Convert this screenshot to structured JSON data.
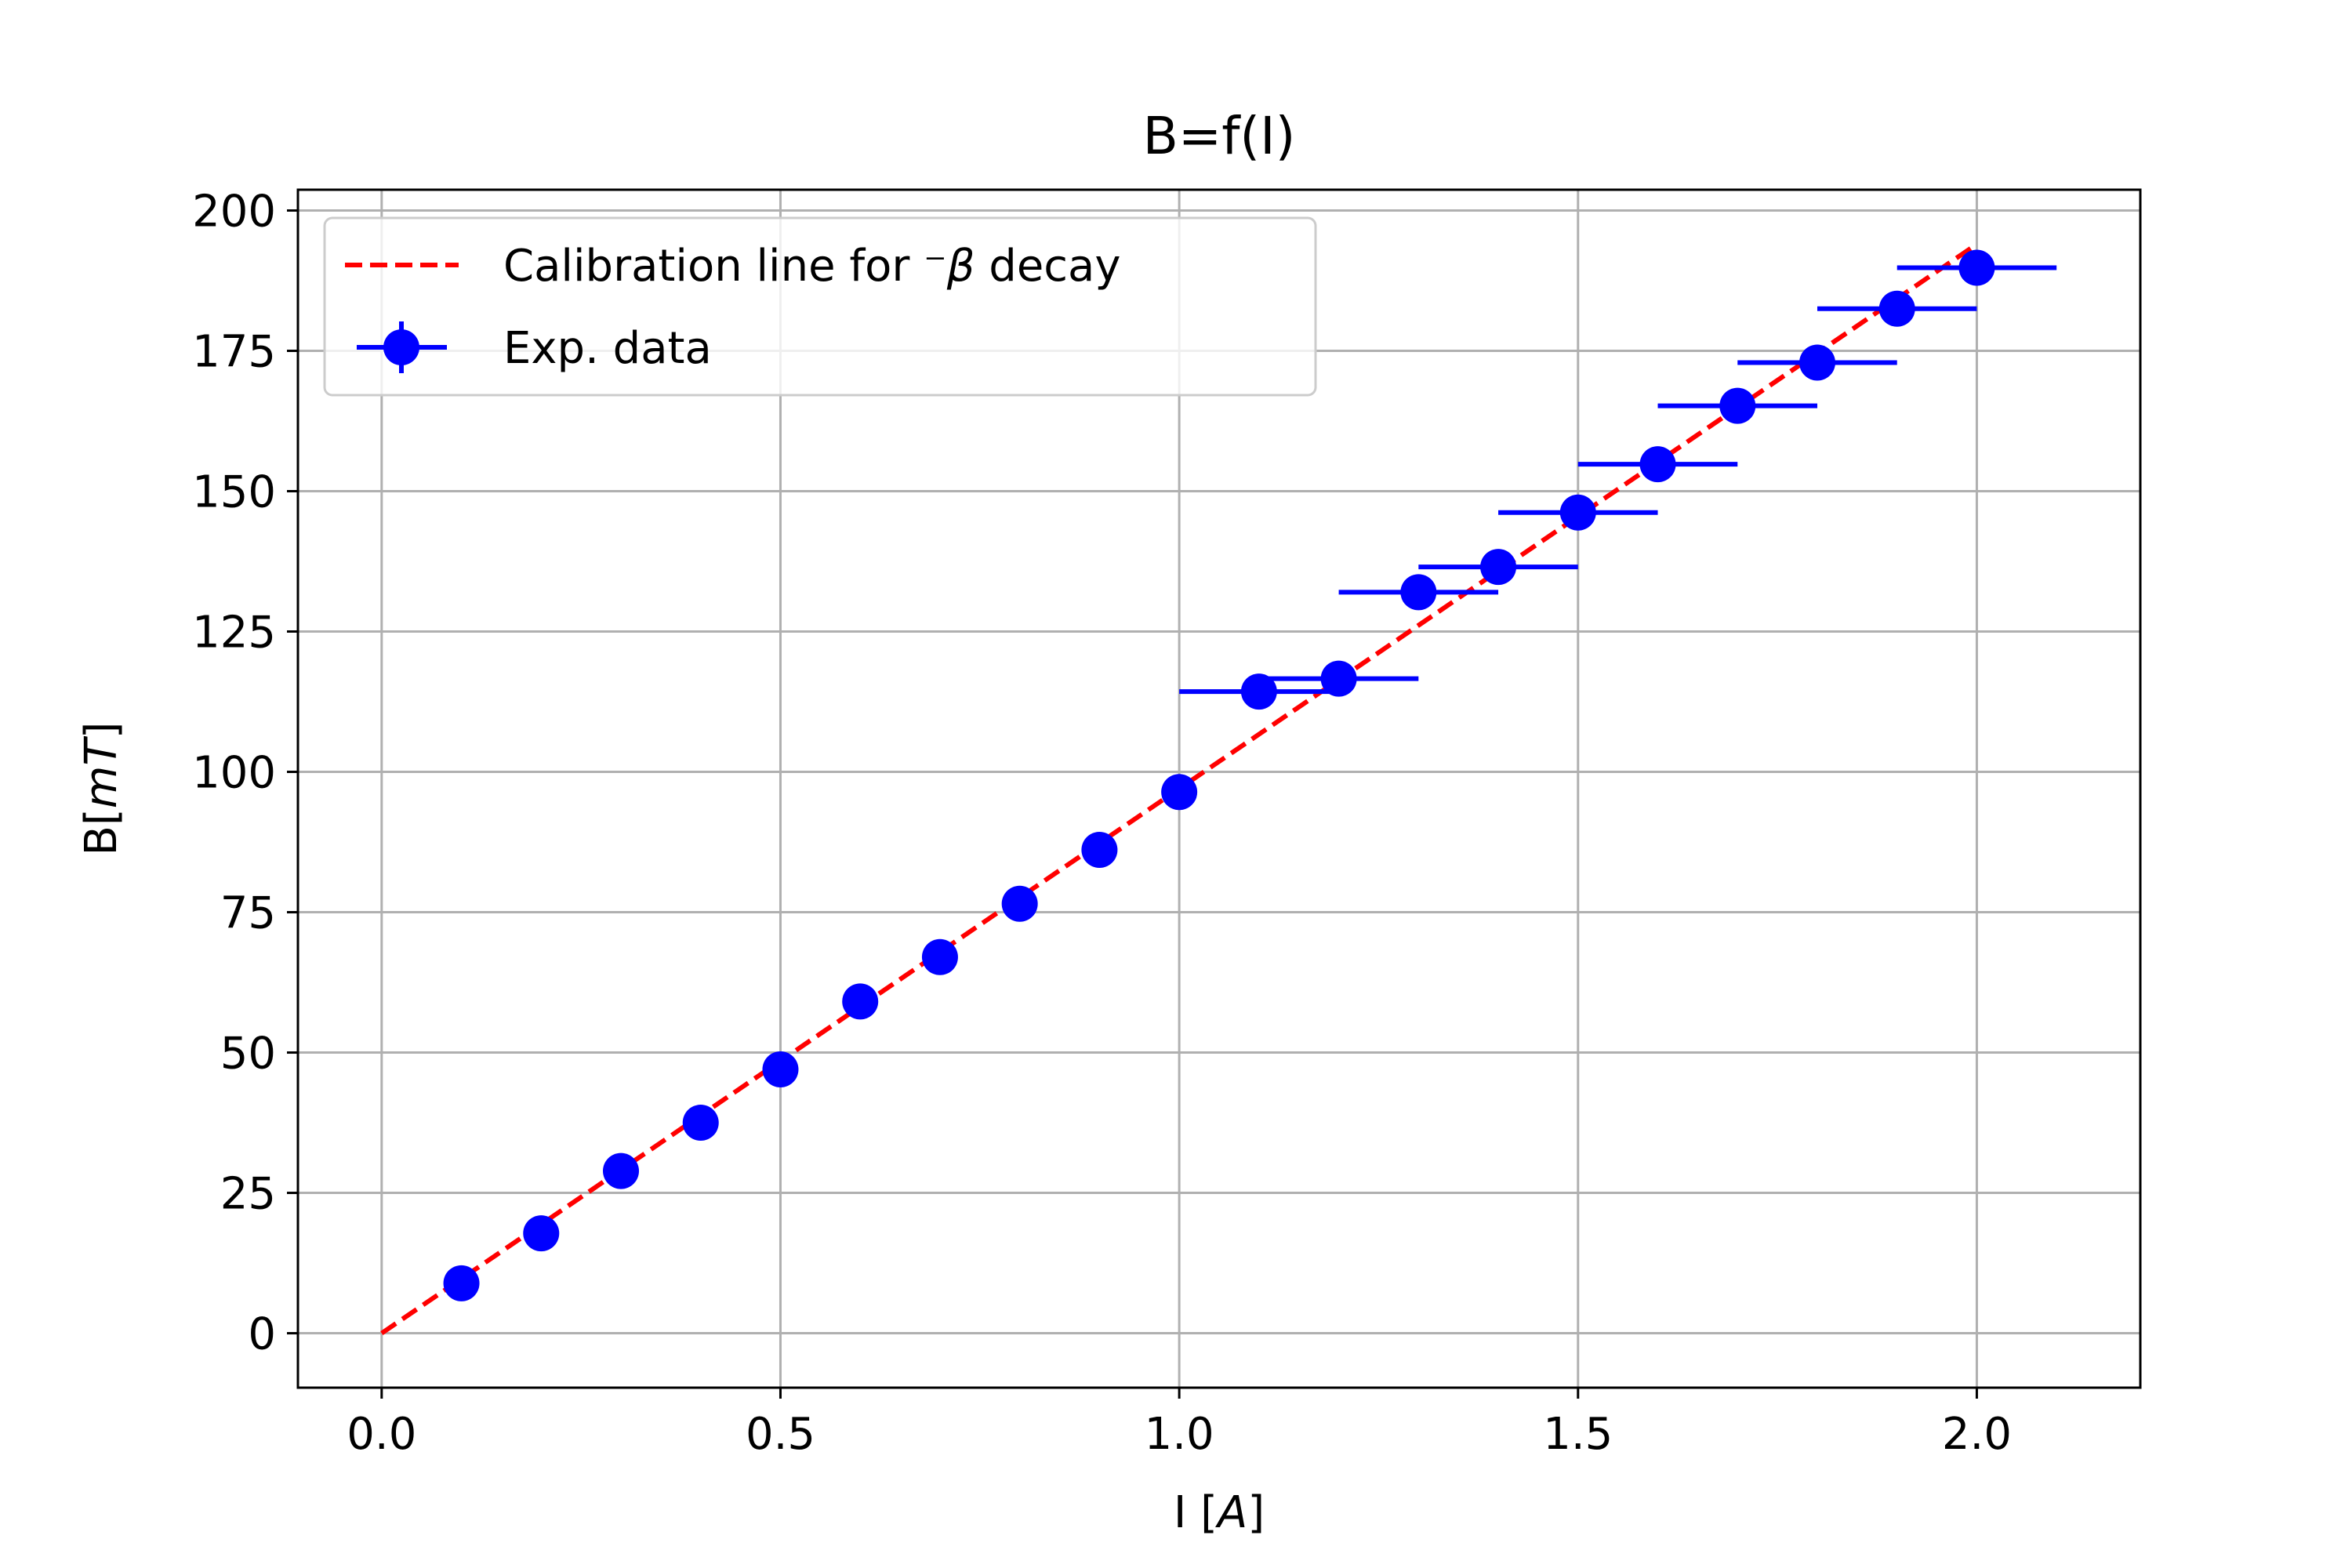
{
  "chart_data": {
    "type": "scatter",
    "title": "B=f(I)",
    "xlabel": "I [A]",
    "ylabel": "B[mT]",
    "xlim": [
      -0.105,
      2.205
    ],
    "ylim": [
      -9.7,
      203.7
    ],
    "grid": true,
    "legend_position": "upper-left",
    "xticks": [
      0.0,
      0.5,
      1.0,
      1.5,
      2.0
    ],
    "xtick_labels": [
      "0.0",
      "0.5",
      "1.0",
      "1.5",
      "2.0"
    ],
    "yticks": [
      0,
      25,
      50,
      75,
      100,
      125,
      150,
      175,
      200
    ],
    "ytick_labels": [
      "0",
      "25",
      "50",
      "75",
      "100",
      "125",
      "150",
      "175",
      "200"
    ],
    "series": [
      {
        "name": "Calibration line for ⁻β decay",
        "kind": "line",
        "style": "dashed",
        "color": "#ff0000",
        "x": [
          0.0,
          2.0
        ],
        "y": [
          0.0,
          194.0
        ]
      },
      {
        "name": "Exp. data",
        "kind": "errorbar",
        "color": "#0000ff",
        "x": [
          0.1,
          0.2,
          0.3,
          0.4,
          0.5,
          0.6,
          0.7,
          0.8,
          0.9,
          1.0,
          1.1,
          1.2,
          1.3,
          1.4,
          1.5,
          1.6,
          1.7,
          1.8,
          1.9,
          2.0
        ],
        "y": [
          8.9,
          17.8,
          28.9,
          37.5,
          47.0,
          59.1,
          67.0,
          76.5,
          86.1,
          96.4,
          114.3,
          116.6,
          132.0,
          136.5,
          146.2,
          154.8,
          165.2,
          172.9,
          182.5,
          189.8
        ],
        "xerr": [
          0,
          0,
          0,
          0,
          0,
          0,
          0,
          0,
          0,
          0,
          0.1,
          0.1,
          0.1,
          0.1,
          0.1,
          0.1,
          0.1,
          0.1,
          0.1,
          0.1
        ]
      }
    ]
  }
}
